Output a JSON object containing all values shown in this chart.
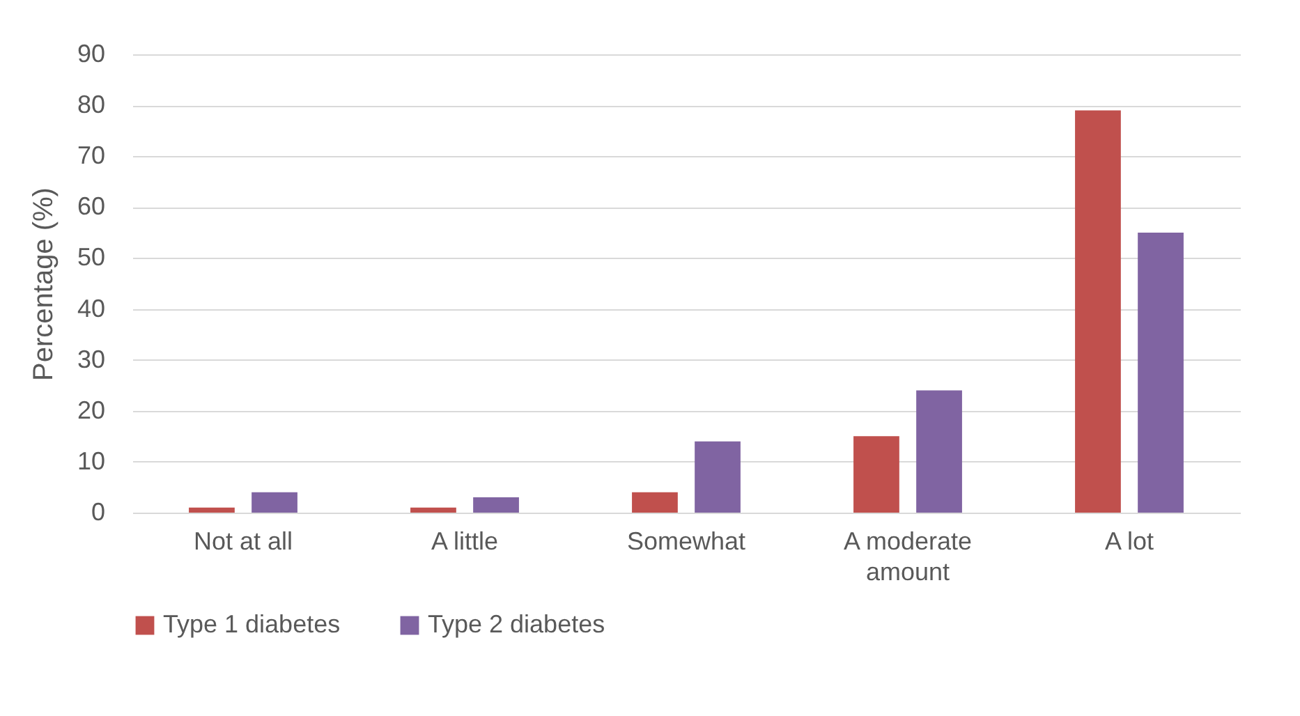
{
  "chart_data": {
    "type": "bar",
    "ylabel": "Percentage (%)",
    "categories": [
      "Not at all",
      "A little",
      "Somewhat",
      "A moderate amount",
      "A lot"
    ],
    "series": [
      {
        "name": "Type 1 diabetes",
        "color": "#c0504d",
        "values": [
          1,
          1,
          4,
          15,
          79
        ]
      },
      {
        "name": "Type 2 diabetes",
        "color": "#8064a2",
        "values": [
          4,
          3,
          14,
          24,
          55
        ]
      }
    ],
    "ylim": [
      0,
      90
    ],
    "yticks": [
      0,
      10,
      20,
      30,
      40,
      50,
      60,
      70,
      80,
      90
    ],
    "grid": "y",
    "legend": "bottom"
  }
}
